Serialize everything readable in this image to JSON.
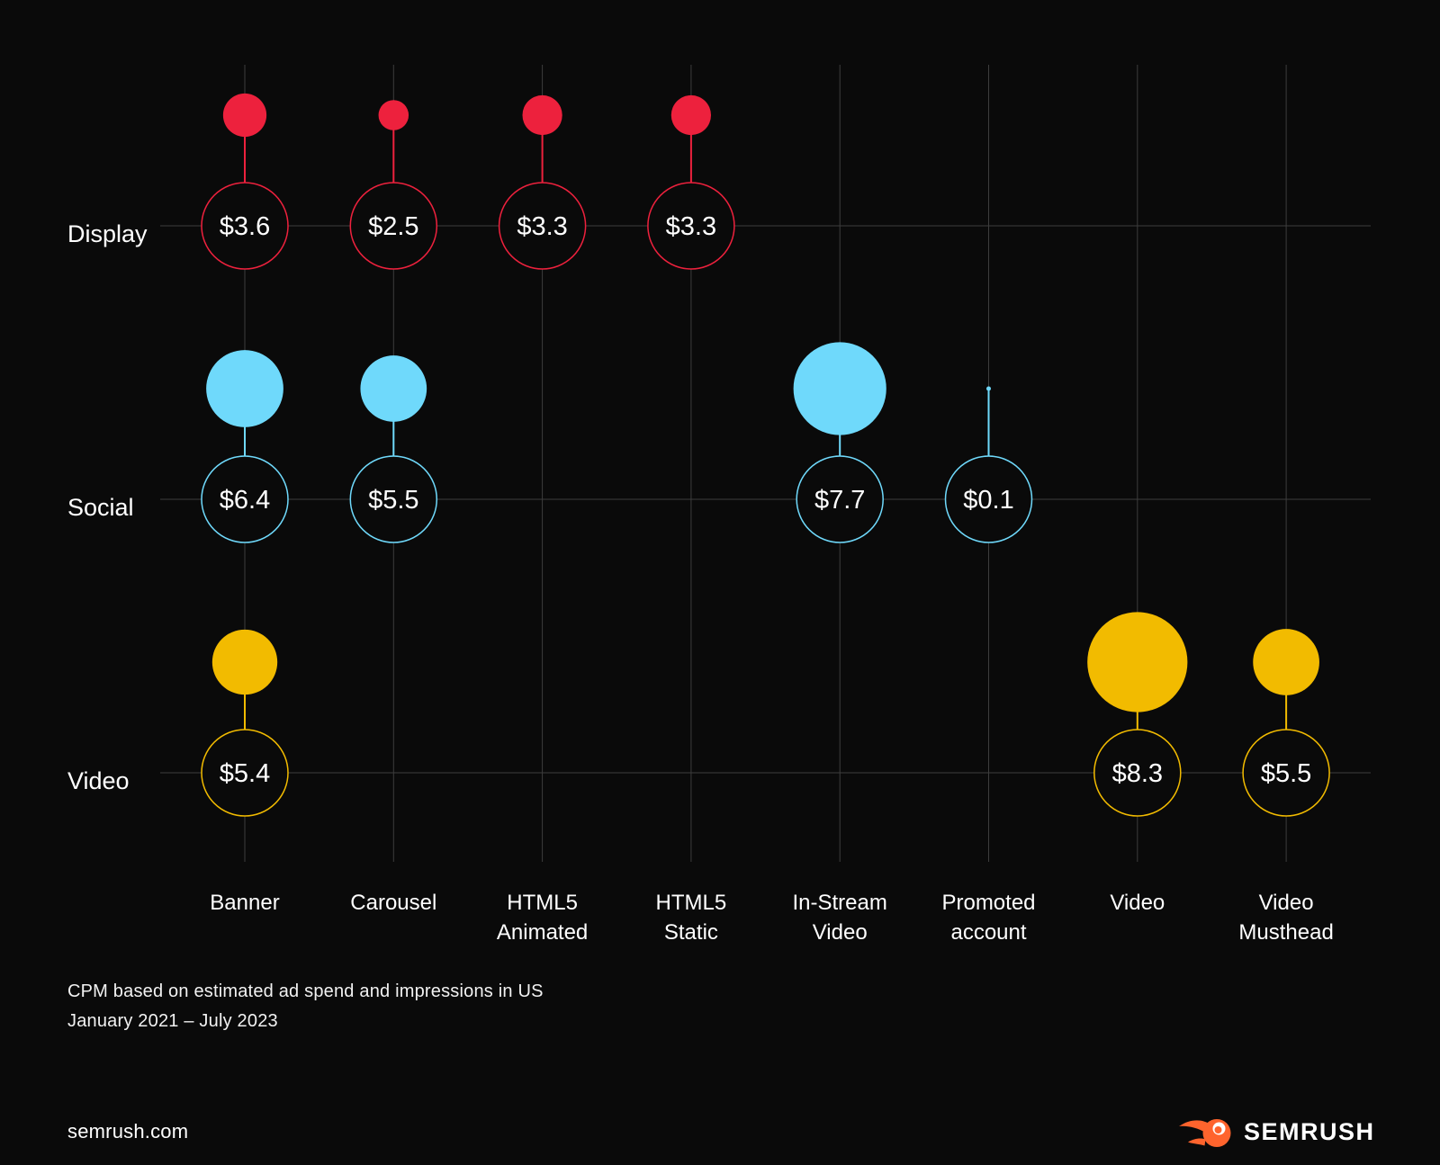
{
  "chart_data": {
    "type": "bubble",
    "subtitle_note": "CPM based on estimated ad spend and impressions in US",
    "period_note": "January 2021 – July 2023",
    "rows": [
      {
        "label": "Display",
        "color": "#ED213D"
      },
      {
        "label": "Social",
        "color": "#6FD9FB"
      },
      {
        "label": "Video",
        "color": "#F2BB00"
      }
    ],
    "columns": [
      "Banner",
      "Carousel",
      "HTML5 Animated",
      "HTML5 Static",
      "In-Stream Video",
      "Promoted account",
      "Video",
      "Video Musthead"
    ],
    "column_label_lines": [
      [
        "Banner"
      ],
      [
        "Carousel"
      ],
      [
        "HTML5",
        "Animated"
      ],
      [
        "HTML5",
        "Static"
      ],
      [
        "In-Stream",
        "Video"
      ],
      [
        "Promoted",
        "account"
      ],
      [
        "Video"
      ],
      [
        "Video",
        "Musthead"
      ]
    ],
    "points": [
      {
        "row": "Display",
        "column": "Banner",
        "value": 3.6,
        "label": "$3.6"
      },
      {
        "row": "Display",
        "column": "Carousel",
        "value": 2.5,
        "label": "$2.5"
      },
      {
        "row": "Display",
        "column": "HTML5 Animated",
        "value": 3.3,
        "label": "$3.3"
      },
      {
        "row": "Display",
        "column": "HTML5 Static",
        "value": 3.3,
        "label": "$3.3"
      },
      {
        "row": "Social",
        "column": "Banner",
        "value": 6.4,
        "label": "$6.4"
      },
      {
        "row": "Social",
        "column": "Carousel",
        "value": 5.5,
        "label": "$5.5"
      },
      {
        "row": "Social",
        "column": "In-Stream Video",
        "value": 7.7,
        "label": "$7.7"
      },
      {
        "row": "Social",
        "column": "Promoted account",
        "value": 0.1,
        "label": "$0.1"
      },
      {
        "row": "Video",
        "column": "Banner",
        "value": 5.4,
        "label": "$5.4"
      },
      {
        "row": "Video",
        "column": "Video",
        "value": 8.3,
        "label": "$8.3"
      },
      {
        "row": "Video",
        "column": "Video Musthead",
        "value": 5.5,
        "label": "$5.5"
      }
    ],
    "grid": true,
    "legend_position": "none",
    "background_color": "#0a0a0a",
    "grid_color": "#3d3d3d",
    "text_color": "#ffffff"
  },
  "footnote": {
    "line1": "CPM based on estimated ad spend and impressions in US",
    "line2": "January 2021 – July 2023"
  },
  "footer": {
    "site": "semrush.com",
    "brand": "SEMRUSH",
    "brand_color": "#FF642D"
  }
}
